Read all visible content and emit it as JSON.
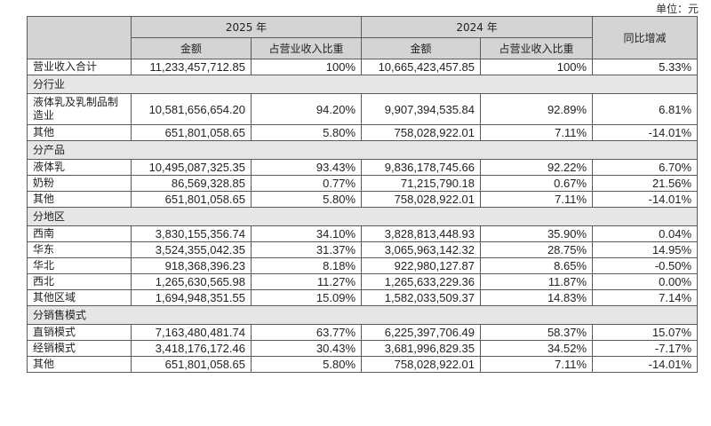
{
  "unit_label": "单位：元",
  "header": {
    "year_2025": "2025 年",
    "year_2024": "2024 年",
    "amount": "金额",
    "share": "占营业收入比重",
    "yoy": "同比增减"
  },
  "total": {
    "label": "营业收入合计",
    "a2025": "11,233,457,712.85",
    "s2025": "100%",
    "a2024": "10,665,423,457.85",
    "s2024": "100%",
    "yoy": "5.33%"
  },
  "sections": [
    {
      "title": "分行业",
      "rows": [
        {
          "label": "液体乳及乳制品制造业",
          "a2025": "10,581,656,654.20",
          "s2025": "94.20%",
          "a2024": "9,907,394,535.84",
          "s2024": "92.89%",
          "yoy": "6.81%"
        },
        {
          "label": "其他",
          "a2025": "651,801,058.65",
          "s2025": "5.80%",
          "a2024": "758,028,922.01",
          "s2024": "7.11%",
          "yoy": "-14.01%"
        }
      ]
    },
    {
      "title": "分产品",
      "rows": [
        {
          "label": "液体乳",
          "a2025": "10,495,087,325.35",
          "s2025": "93.43%",
          "a2024": "9,836,178,745.66",
          "s2024": "92.22%",
          "yoy": "6.70%"
        },
        {
          "label": "奶粉",
          "a2025": "86,569,328.85",
          "s2025": "0.77%",
          "a2024": "71,215,790.18",
          "s2024": "0.67%",
          "yoy": "21.56%"
        },
        {
          "label": "其他",
          "a2025": "651,801,058.65",
          "s2025": "5.80%",
          "a2024": "758,028,922.01",
          "s2024": "7.11%",
          "yoy": "-14.01%"
        }
      ]
    },
    {
      "title": "分地区",
      "rows": [
        {
          "label": "西南",
          "a2025": "3,830,155,356.74",
          "s2025": "34.10%",
          "a2024": "3,828,813,448.93",
          "s2024": "35.90%",
          "yoy": "0.04%"
        },
        {
          "label": "华东",
          "a2025": "3,524,355,042.35",
          "s2025": "31.37%",
          "a2024": "3,065,963,142.32",
          "s2024": "28.75%",
          "yoy": "14.95%"
        },
        {
          "label": "华北",
          "a2025": "918,368,396.23",
          "s2025": "8.18%",
          "a2024": "922,980,127.87",
          "s2024": "8.65%",
          "yoy": "-0.50%"
        },
        {
          "label": "西北",
          "a2025": "1,265,630,565.98",
          "s2025": "11.27%",
          "a2024": "1,265,633,229.36",
          "s2024": "11.87%",
          "yoy": "0.00%"
        },
        {
          "label": "其他区域",
          "a2025": "1,694,948,351.55",
          "s2025": "15.09%",
          "a2024": "1,582,033,509.37",
          "s2024": "14.83%",
          "yoy": "7.14%"
        }
      ]
    },
    {
      "title": "分销售模式",
      "rows": [
        {
          "label": "直销模式",
          "a2025": "7,163,480,481.74",
          "s2025": "63.77%",
          "a2024": "6,225,397,706.49",
          "s2024": "58.37%",
          "yoy": "15.07%"
        },
        {
          "label": "经销模式",
          "a2025": "3,418,176,172.46",
          "s2025": "30.43%",
          "a2024": "3,681,996,829.35",
          "s2024": "34.52%",
          "yoy": "-7.17%"
        },
        {
          "label": "其他",
          "a2025": "651,801,058.65",
          "s2025": "5.80%",
          "a2024": "758,028,922.01",
          "s2024": "7.11%",
          "yoy": "-14.01%"
        }
      ]
    }
  ]
}
